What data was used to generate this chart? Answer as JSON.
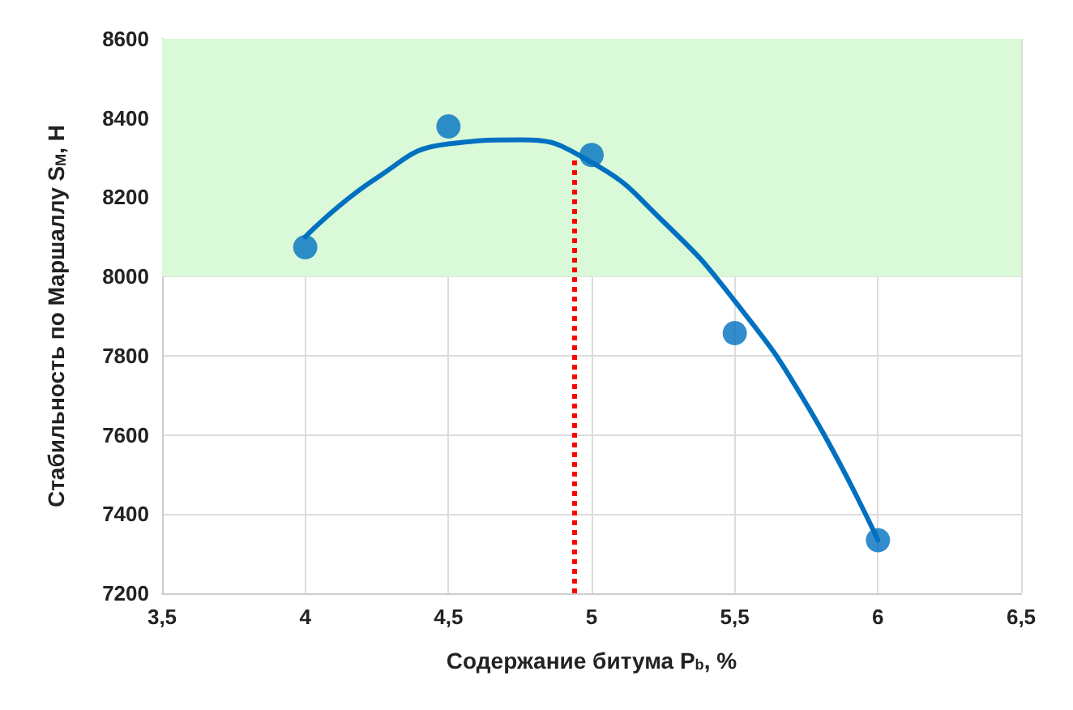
{
  "chart_data": {
    "type": "scatter",
    "xlabel": "Содержание битума P$_{b}$, %",
    "ylabel": "Стабильность по Маршаллу S$_{М}$, Н",
    "x": [
      4,
      4.5,
      5,
      5.5,
      6
    ],
    "series": [
      {
        "color": "#0070c0",
        "values": [
          8074,
          8379,
          8307,
          7857,
          7334
        ],
        "marker": "circle"
      },
      {
        "type": "line",
        "color": "#0070c0",
        "x": [
          4,
          4.25,
          4.5,
          4.75,
          5,
          5.25,
          5.5,
          5.75,
          6
        ],
        "values": [
          8100,
          8249,
          8335,
          8345,
          8288,
          8139,
          7938,
          7678,
          7334
        ]
      }
    ],
    "xlim": [
      3.5,
      6.5
    ],
    "xticks": [
      {
        "value": 3.5,
        "label": "3,5"
      },
      4,
      {
        "value": 4.5,
        "label": "4,5"
      },
      5,
      {
        "value": 5.5,
        "label": "5,5"
      },
      6,
      {
        "value": 6.5,
        "label": "6,5"
      }
    ],
    "ylim": [
      7200,
      8600
    ],
    "yticks": [
      7200,
      7400,
      7600,
      7800,
      8000,
      8200,
      8400,
      8600
    ],
    "grid": true,
    "ref_lines": [
      {
        "axis": "x",
        "value": 4.94,
        "color": "#ff0000",
        "line_style": "dotted"
      }
    ],
    "bands": [
      {
        "axis": "y",
        "from": 8000,
        "to": 8600,
        "color": "#d9f9d9"
      }
    ]
  }
}
